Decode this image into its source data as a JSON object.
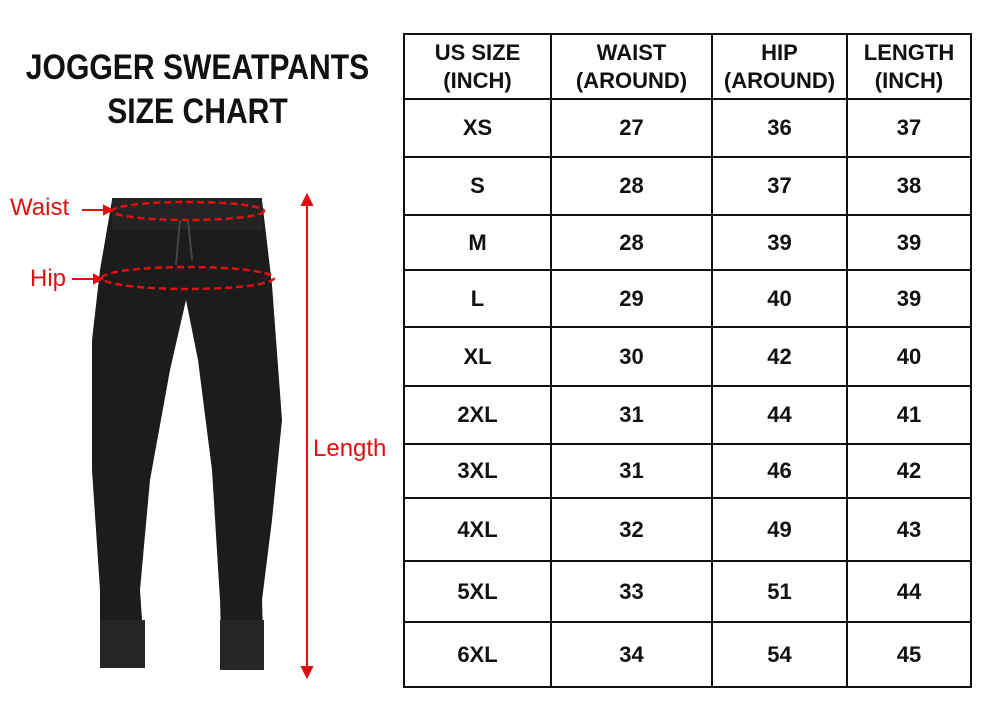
{
  "title": {
    "line1": "JOGGER SWEATPANTS",
    "line2": "SIZE CHART"
  },
  "labels": {
    "waist": "Waist",
    "hip": "Hip",
    "length": "Length"
  },
  "colors": {
    "annotation": "#e01010",
    "garment": "#1a1a1a"
  },
  "table": {
    "headers": [
      [
        "US SIZE",
        "(INCH)"
      ],
      [
        "WAIST",
        "(AROUND)"
      ],
      [
        "HIP",
        "(AROUND)"
      ],
      [
        "LENGTH",
        "(INCH)"
      ]
    ],
    "rows": [
      [
        "XS",
        "27",
        "36",
        "37"
      ],
      [
        "S",
        "28",
        "37",
        "38"
      ],
      [
        "M",
        "28",
        "39",
        "39"
      ],
      [
        "L",
        "29",
        "40",
        "39"
      ],
      [
        "XL",
        "30",
        "42",
        "40"
      ],
      [
        "2XL",
        "31",
        "44",
        "41"
      ],
      [
        "3XL",
        "31",
        "46",
        "42"
      ],
      [
        "4XL",
        "32",
        "49",
        "43"
      ],
      [
        "5XL",
        "33",
        "51",
        "44"
      ],
      [
        "6XL",
        "34",
        "54",
        "45"
      ]
    ]
  }
}
